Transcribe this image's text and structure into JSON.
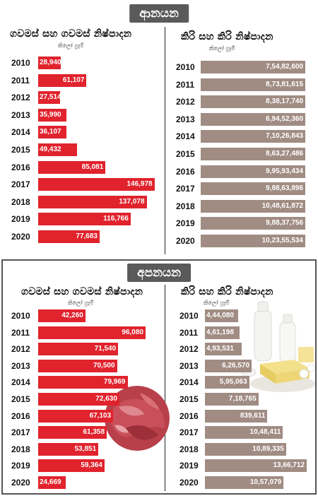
{
  "sections": {
    "import_title": "ආනයන",
    "export_title": "අපනයන"
  },
  "colors": {
    "meat_bar": "#e0232d",
    "dairy_bar": "#a08c83",
    "badge": "#5a5a5a"
  },
  "chart_data": [
    {
      "type": "bar",
      "id": "import_meat",
      "title": "ගවමස් සහ ගවමස් නිෂ්පාදන",
      "unit": "කිලෝ ග්‍රෑම්",
      "categories": [
        "2010",
        "2011",
        "2012",
        "2013",
        "2014",
        "2015",
        "2016",
        "2017",
        "2018",
        "2019",
        "2020"
      ],
      "values": [
        28940,
        61107,
        27514,
        35990,
        36107,
        49432,
        85081,
        146978,
        137078,
        116766,
        77683
      ],
      "labels": [
        "28,940",
        "61,107",
        "27,514",
        "35,990",
        "36,107",
        "49,432",
        "85,081",
        "146,978",
        "137,078",
        "116,766",
        "77,683"
      ]
    },
    {
      "type": "bar",
      "id": "import_dairy",
      "title": "කිරි සහ කිරි නිෂ්පාදන",
      "unit": "කිලෝ ග්‍රෑම්",
      "categories": [
        "2010",
        "2011",
        "2012",
        "2013",
        "2014",
        "2015",
        "2016",
        "2017",
        "2018",
        "2019",
        "2020"
      ],
      "values": [
        75482600,
        87381615,
        83817740,
        69452360,
        71026843,
        86327486,
        99593434,
        98863896,
        104861872,
        98837756,
        102355534
      ],
      "labels": [
        "7,54,82,600",
        "8,73,81,615",
        "8,38,17,740",
        "6,94,52,360",
        "7,10,26,843",
        "8,63,27,486",
        "9,95,93,434",
        "9,88,63,896",
        "10,48,61,872",
        "9,88,37,756",
        "10,23,55,534"
      ]
    },
    {
      "type": "bar",
      "id": "export_meat",
      "title": "ගවමස් සහ ගවමස් නිෂ්පාදන",
      "unit": "කිලෝ ග්‍රෑම්",
      "categories": [
        "2010",
        "2011",
        "2012",
        "2013",
        "2014",
        "2015",
        "2016",
        "2017",
        "2018",
        "2019",
        "2020"
      ],
      "values": [
        42260,
        96080,
        71540,
        70500,
        79969,
        72630,
        67103,
        61358,
        53851,
        59364,
        24669
      ],
      "labels": [
        "42,260",
        "96,080",
        "71,540",
        "70,500",
        "79,969",
        "72,630",
        "67,103",
        "61,358",
        "53,851",
        "59,364",
        "24,669"
      ]
    },
    {
      "type": "bar",
      "id": "export_dairy",
      "title": "කිරි සහ කිරි නිෂ්පාදන",
      "unit": "කිලෝ ග්‍රෑම්",
      "categories": [
        "2010",
        "2011",
        "2012",
        "2013",
        "2014",
        "2015",
        "2016",
        "2017",
        "2018",
        "2019",
        "2020"
      ],
      "values": [
        444080,
        461198,
        493531,
        626570,
        595063,
        718765,
        839611,
        1048411,
        1089335,
        1366712,
        1057079
      ],
      "labels": [
        "4,44,080",
        "4,61,198",
        "4,93,531",
        "6,26,570",
        "5,95,063",
        "7,18,765",
        "839,611",
        "10,48,411",
        "10,89,335",
        "13,66,712",
        "10,57,079"
      ]
    }
  ]
}
